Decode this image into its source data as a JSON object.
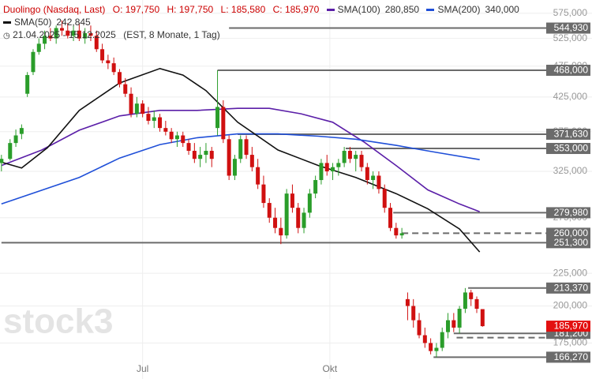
{
  "chart_data": {
    "type": "candlestick",
    "title": "Duolingo (Nasdaq, Last)",
    "ohlc_labels": [
      "O: 197,750",
      "H: 197,750",
      "L: 185,580",
      "C: 185,970"
    ],
    "period": "21.04.2025 - 15.12.2025",
    "period_note": "(EST, 8 Monate, 1 Tag)",
    "watermark": "stock3",
    "log_y": true,
    "grid": true,
    "ylim": [
      153.7,
      603
    ],
    "yticks": [
      {
        "value": 575,
        "label": "575,000"
      },
      {
        "value": 525,
        "label": "525,000"
      },
      {
        "value": 475,
        "label": "475,000"
      },
      {
        "value": 425,
        "label": "425,000"
      },
      {
        "value": 375,
        "label": "375,000"
      },
      {
        "value": 325,
        "label": "325,000"
      },
      {
        "value": 275,
        "label": "275,000"
      },
      {
        "value": 225,
        "label": "225,000"
      },
      {
        "value": 200,
        "label": "200,000"
      },
      {
        "value": 175,
        "label": "175,000"
      }
    ],
    "xlim": [
      -0.5,
      205
    ],
    "xticks": [
      {
        "value": 49,
        "label": "Jul"
      },
      {
        "value": 114,
        "label": "Okt"
      }
    ],
    "up_color": "#2a9d2a",
    "down_color": "#d01010",
    "candles": {
      "x": [
        0,
        3,
        5,
        7,
        9,
        11,
        13,
        15,
        17,
        19,
        21,
        23,
        25,
        27,
        29,
        31,
        33,
        35,
        37,
        39,
        41,
        43,
        45,
        47,
        49,
        51,
        53,
        55,
        57,
        59,
        61,
        63,
        65,
        67,
        69,
        71,
        73,
        75,
        77,
        79,
        81,
        83,
        85,
        87,
        89,
        91,
        93,
        95,
        97,
        99,
        101,
        103,
        105,
        107,
        109,
        111,
        113,
        115,
        117,
        119,
        121,
        123,
        125,
        127,
        129,
        131,
        133,
        135,
        137,
        139,
        141,
        143,
        145,
        147,
        149,
        151,
        153,
        155,
        157,
        159,
        161,
        163,
        165,
        167
      ],
      "open": [
        335,
        340,
        360,
        372,
        430,
        465,
        500,
        515,
        530,
        525,
        545,
        540,
        530,
        540,
        525,
        535,
        530,
        505,
        485,
        480,
        465,
        445,
        430,
        400,
        415,
        400,
        390,
        395,
        380,
        375,
        365,
        370,
        360,
        350,
        340,
        345,
        350,
        380,
        410,
        365,
        320,
        340,
        365,
        345,
        330,
        310,
        290,
        275,
        265,
        258,
        300,
        285,
        265,
        280,
        300,
        315,
        335,
        325,
        330,
        335,
        350,
        340,
        345,
        330,
        315,
        320,
        305,
        285,
        265,
        258,
        205,
        200,
        190,
        180,
        175,
        170,
        172,
        182,
        190,
        185,
        198,
        210,
        205,
        197.75
      ],
      "high": [
        345,
        365,
        378,
        385,
        465,
        505,
        525,
        540,
        545,
        550,
        560,
        555,
        550,
        555,
        545,
        550,
        540,
        515,
        495,
        490,
        470,
        455,
        440,
        425,
        420,
        410,
        405,
        400,
        390,
        380,
        375,
        375,
        365,
        360,
        355,
        360,
        355,
        468,
        420,
        370,
        345,
        370,
        370,
        355,
        340,
        320,
        295,
        285,
        275,
        305,
        310,
        290,
        285,
        305,
        320,
        340,
        345,
        335,
        340,
        355,
        355,
        350,
        350,
        335,
        325,
        325,
        310,
        290,
        270,
        265,
        210,
        205,
        195,
        185,
        178,
        175,
        185,
        195,
        195,
        200,
        213.37,
        212,
        207,
        197.75
      ],
      "low": [
        325,
        338,
        355,
        365,
        425,
        460,
        495,
        505,
        520,
        515,
        530,
        525,
        520,
        520,
        515,
        520,
        500,
        480,
        470,
        460,
        440,
        425,
        395,
        395,
        395,
        385,
        380,
        375,
        370,
        360,
        355,
        355,
        345,
        335,
        330,
        335,
        330,
        370,
        360,
        315,
        315,
        335,
        340,
        325,
        305,
        285,
        270,
        260,
        250,
        255,
        280,
        260,
        260,
        275,
        295,
        310,
        320,
        315,
        320,
        330,
        335,
        325,
        325,
        310,
        305,
        300,
        280,
        262,
        255,
        255,
        190,
        185,
        178,
        172,
        168,
        166.27,
        170,
        178,
        182,
        181.2,
        195,
        200,
        195,
        185.58
      ],
      "close": [
        340,
        360,
        370,
        380,
        460,
        500,
        515,
        530,
        525,
        545,
        540,
        530,
        540,
        525,
        535,
        530,
        505,
        485,
        480,
        465,
        445,
        430,
        400,
        415,
        400,
        390,
        395,
        380,
        375,
        365,
        370,
        360,
        350,
        340,
        345,
        350,
        340,
        410,
        365,
        320,
        340,
        365,
        345,
        330,
        310,
        290,
        275,
        265,
        258,
        300,
        285,
        265,
        280,
        300,
        315,
        335,
        325,
        330,
        335,
        350,
        340,
        345,
        330,
        315,
        320,
        305,
        285,
        265,
        258,
        260,
        200,
        190,
        180,
        175,
        170,
        172,
        182,
        190,
        185,
        198,
        210,
        205,
        198,
        185.97
      ]
    },
    "series": [
      {
        "name": "SMA(100)",
        "value_label": "280,850",
        "color": "#5b1fa8",
        "x": [
          0,
          14,
          27,
          41,
          55,
          68,
          82,
          93,
          104,
          115,
          126,
          137,
          148,
          159,
          166
        ],
        "values": [
          332,
          351,
          377,
          397,
          405,
          405,
          408,
          408,
          400,
          388,
          361,
          332,
          304,
          289,
          281
        ]
      },
      {
        "name": "SMA(200)",
        "value_label": "340,000",
        "color": "#1f4fd8",
        "x": [
          0,
          27,
          41,
          55,
          68,
          82,
          96,
          110,
          123,
          137,
          151,
          166
        ],
        "values": [
          289,
          318,
          341,
          358,
          367,
          372,
          372,
          369,
          365,
          357,
          348,
          339
        ]
      },
      {
        "name": "SMA(50)",
        "value_label": "242,845",
        "color": "#111111",
        "x": [
          0,
          7,
          16,
          27,
          41,
          55,
          63,
          71,
          82,
          96,
          110,
          123,
          137,
          148,
          159,
          166
        ],
        "values": [
          336,
          329,
          354,
          405,
          447,
          471,
          460,
          435,
          388,
          351,
          332,
          318,
          300,
          284,
          264,
          243
        ]
      }
    ],
    "levels": [
      {
        "value": 544.93,
        "label": "544,930",
        "from": 79
      },
      {
        "value": 468,
        "label": "468,000",
        "from": 75
      },
      {
        "value": 371.63,
        "label": "371,630",
        "from": 82
      },
      {
        "value": 353,
        "label": "353,000",
        "from": 119.5
      },
      {
        "value": 279.98,
        "label": "279,980",
        "from": 136
      },
      {
        "value": 260,
        "label": "260,000",
        "from": 139,
        "dashed": true
      },
      {
        "value": 251.3,
        "label": "251,300",
        "from": 0
      },
      {
        "value": 213.37,
        "label": "213,370",
        "from": 162
      },
      {
        "value": 181.2,
        "label": "181,200",
        "from": 157
      },
      {
        "value": 178.4,
        "from": 158,
        "dashed": true
      },
      {
        "value": 166.27,
        "label": "166,270",
        "from": 150
      }
    ],
    "last_price": {
      "value": 185.97,
      "label": "185,970",
      "color": "#e31010"
    }
  }
}
